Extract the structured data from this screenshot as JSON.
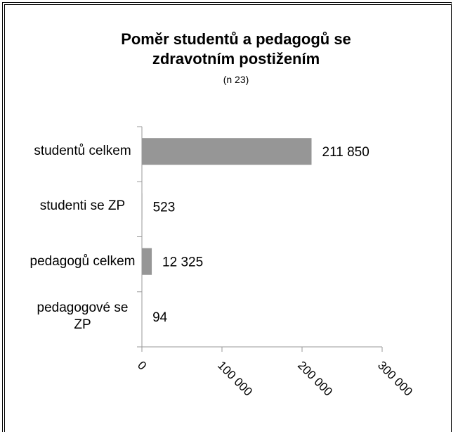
{
  "chart_data": {
    "type": "bar",
    "orientation": "horizontal",
    "title": "Poměr studentů a pedagogů se zdravotním postižením",
    "subtitle": "(n 23)",
    "categories": [
      "studentů celkem",
      "studenti se ZP",
      "pedagogů celkem",
      "pedagogové se ZP"
    ],
    "values": [
      211850,
      523,
      12325,
      94
    ],
    "value_labels": [
      "211 850",
      "523",
      "12 325",
      "94"
    ],
    "color": "#969696",
    "xlim": [
      0,
      300000
    ],
    "xticks": [
      0,
      {
        "value": 100000,
        "label": "100 000"
      },
      {
        "value": 200000,
        "label": "200 000"
      },
      {
        "value": 300000,
        "label": "300 000"
      }
    ]
  }
}
